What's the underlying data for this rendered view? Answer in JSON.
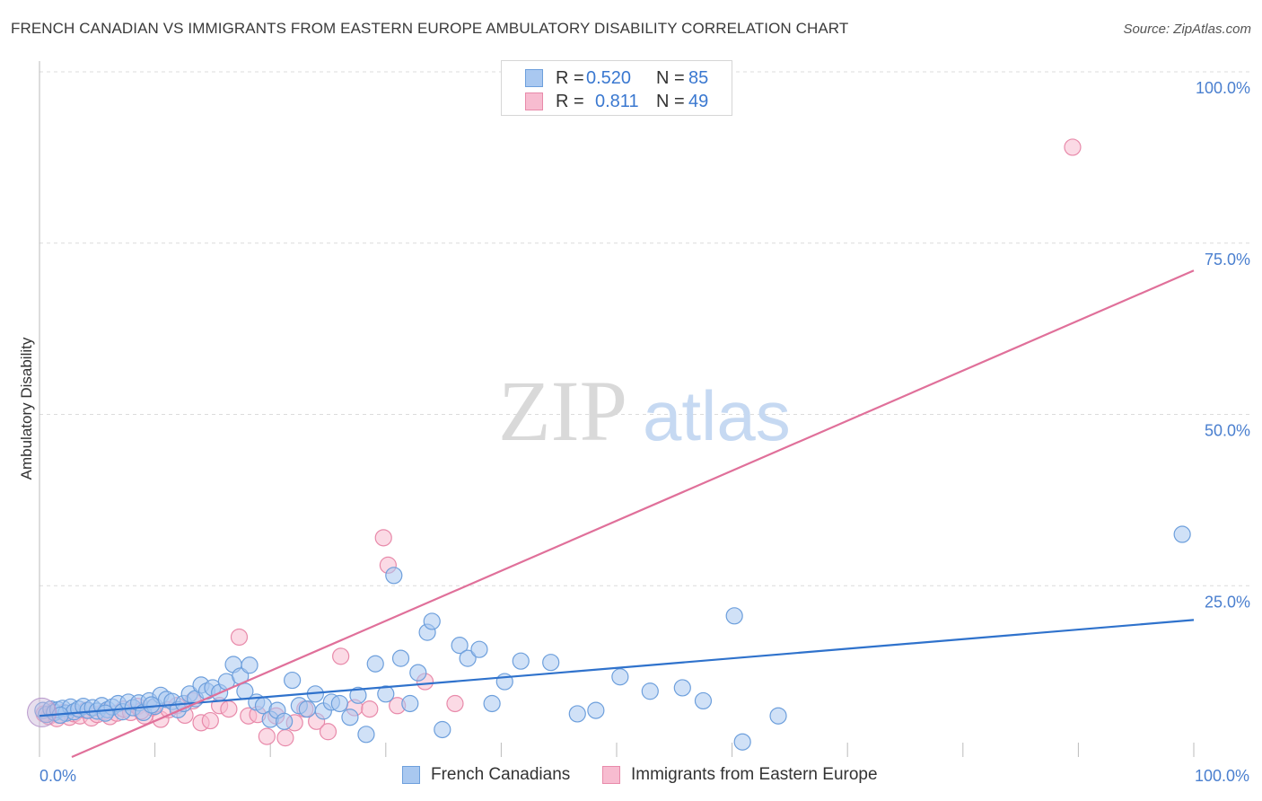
{
  "title": "FRENCH CANADIAN VS IMMIGRANTS FROM EASTERN EUROPE AMBULATORY DISABILITY CORRELATION CHART",
  "source": "Source: ZipAtlas.com",
  "watermark": {
    "zip": "ZIP",
    "atlas": "atlas"
  },
  "colors": {
    "blue_fill": "#a9c8f0",
    "blue_stroke": "#6d9fdc",
    "blue_line": "#2f72cc",
    "pink_fill": "#f7bcd0",
    "pink_stroke": "#e88aaa",
    "pink_line": "#e0709a",
    "tick_text": "#4a7fcf",
    "grid": "#dcdcdc"
  },
  "legend_top": {
    "rows": [
      {
        "r_label": "R = ",
        "r_value": "0.520",
        "n_label": "N = ",
        "n_value": "85"
      },
      {
        "r_label": "R = ",
        "r_value": "0.811",
        "n_label": "N = ",
        "n_value": "49"
      }
    ]
  },
  "legend_bottom": [
    "French Canadians",
    "Immigrants from Eastern Europe"
  ],
  "chart_data": {
    "type": "scatter",
    "title": "FRENCH CANADIAN VS IMMIGRANTS FROM EASTERN EUROPE AMBULATORY DISABILITY CORRELATION CHART",
    "xlabel": "",
    "ylabel": "Ambulatory Disability",
    "xlim": [
      0,
      100
    ],
    "ylim": [
      0,
      100
    ],
    "x_tick_labels": [
      {
        "value": 0,
        "label": "0.0%"
      },
      {
        "value": 100,
        "label": "100.0%"
      }
    ],
    "y_tick_labels": [
      {
        "value": 25,
        "label": "25.0%"
      },
      {
        "value": 50,
        "label": "50.0%"
      },
      {
        "value": 75,
        "label": "75.0%"
      },
      {
        "value": 100,
        "label": "100.0%"
      }
    ],
    "grid": "horizontal dashed",
    "legend_placement": "top-center",
    "series": [
      {
        "name": "French Canadians",
        "color": "#6d9fdc",
        "r": 0.52,
        "n": 85,
        "trend": [
          [
            0,
            6.0
          ],
          [
            100,
            20.0
          ]
        ],
        "points": [
          [
            0.3,
            6.8
          ],
          [
            0.6,
            6.2
          ],
          [
            1.0,
            7.0
          ],
          [
            1.3,
            6.5
          ],
          [
            1.6,
            6.9
          ],
          [
            2.0,
            7.1
          ],
          [
            2.3,
            6.4
          ],
          [
            2.7,
            7.3
          ],
          [
            3.0,
            6.6
          ],
          [
            3.4,
            7.0
          ],
          [
            3.8,
            7.4
          ],
          [
            4.2,
            6.8
          ],
          [
            4.6,
            7.2
          ],
          [
            5.0,
            6.7
          ],
          [
            5.4,
            7.5
          ],
          [
            5.9,
            6.9
          ],
          [
            6.3,
            7.3
          ],
          [
            6.8,
            7.8
          ],
          [
            7.2,
            6.6
          ],
          [
            7.7,
            8.0
          ],
          [
            8.1,
            7.2
          ],
          [
            8.6,
            7.9
          ],
          [
            9.0,
            6.5
          ],
          [
            9.5,
            8.2
          ],
          [
            10.0,
            7.4
          ],
          [
            10.5,
            9.0
          ],
          [
            11.0,
            8.4
          ],
          [
            11.5,
            8.1
          ],
          [
            12.0,
            6.9
          ],
          [
            12.5,
            7.8
          ],
          [
            13.0,
            9.2
          ],
          [
            13.5,
            8.5
          ],
          [
            14.0,
            10.5
          ],
          [
            14.5,
            9.6
          ],
          [
            15.0,
            10.1
          ],
          [
            15.6,
            9.4
          ],
          [
            16.2,
            11.0
          ],
          [
            16.8,
            13.5
          ],
          [
            17.4,
            11.8
          ],
          [
            18.2,
            13.4
          ],
          [
            18.8,
            8.0
          ],
          [
            19.4,
            7.5
          ],
          [
            20.0,
            5.5
          ],
          [
            20.6,
            6.8
          ],
          [
            21.2,
            5.2
          ],
          [
            21.9,
            11.2
          ],
          [
            22.5,
            7.5
          ],
          [
            23.2,
            7.0
          ],
          [
            23.9,
            9.2
          ],
          [
            24.6,
            6.7
          ],
          [
            25.3,
            8.0
          ],
          [
            26.0,
            7.8
          ],
          [
            26.9,
            5.8
          ],
          [
            27.6,
            9.0
          ],
          [
            28.3,
            3.3
          ],
          [
            29.1,
            13.6
          ],
          [
            30.0,
            9.2
          ],
          [
            30.7,
            26.5
          ],
          [
            31.3,
            14.4
          ],
          [
            32.1,
            7.8
          ],
          [
            32.8,
            12.3
          ],
          [
            33.6,
            18.2
          ],
          [
            34.0,
            19.8
          ],
          [
            34.9,
            4.0
          ],
          [
            36.4,
            16.3
          ],
          [
            37.1,
            14.4
          ],
          [
            38.1,
            15.7
          ],
          [
            39.2,
            7.8
          ],
          [
            40.3,
            11.0
          ],
          [
            41.7,
            14.0
          ],
          [
            44.3,
            13.8
          ],
          [
            46.6,
            6.3
          ],
          [
            48.2,
            6.8
          ],
          [
            50.3,
            11.7
          ],
          [
            52.9,
            9.6
          ],
          [
            55.7,
            10.1
          ],
          [
            57.5,
            8.2
          ],
          [
            60.2,
            20.6
          ],
          [
            60.9,
            2.2
          ],
          [
            64.0,
            6.0
          ],
          [
            99.0,
            32.5
          ],
          [
            1.8,
            6.1
          ],
          [
            5.7,
            6.4
          ],
          [
            9.7,
            7.6
          ],
          [
            17.8,
            9.6
          ]
        ]
      },
      {
        "name": "Immigrants from Eastern Europe",
        "color": "#e88aaa",
        "r": 0.811,
        "n": 49,
        "trend": [
          [
            2.8,
            0.0
          ],
          [
            100,
            71.0
          ]
        ],
        "points": [
          [
            0.4,
            6.3
          ],
          [
            0.8,
            5.9
          ],
          [
            1.2,
            6.7
          ],
          [
            1.7,
            6.1
          ],
          [
            2.1,
            6.5
          ],
          [
            2.6,
            5.8
          ],
          [
            3.0,
            6.3
          ],
          [
            3.5,
            6.0
          ],
          [
            4.0,
            6.8
          ],
          [
            4.5,
            5.7
          ],
          [
            5.0,
            6.2
          ],
          [
            5.6,
            6.6
          ],
          [
            6.1,
            5.9
          ],
          [
            6.7,
            6.4
          ],
          [
            7.3,
            7.0
          ],
          [
            7.9,
            6.5
          ],
          [
            8.5,
            7.4
          ],
          [
            9.1,
            6.0
          ],
          [
            9.8,
            7.2
          ],
          [
            10.5,
            5.5
          ],
          [
            11.2,
            6.9
          ],
          [
            11.9,
            7.5
          ],
          [
            12.6,
            6.1
          ],
          [
            13.3,
            8.2
          ],
          [
            14.0,
            5.0
          ],
          [
            14.8,
            5.3
          ],
          [
            15.6,
            7.5
          ],
          [
            16.4,
            7.0
          ],
          [
            17.3,
            17.5
          ],
          [
            18.1,
            6.0
          ],
          [
            18.9,
            6.2
          ],
          [
            19.7,
            3.0
          ],
          [
            20.5,
            6.0
          ],
          [
            21.3,
            2.8
          ],
          [
            22.1,
            5.0
          ],
          [
            23.0,
            7.0
          ],
          [
            24.0,
            5.2
          ],
          [
            25.0,
            3.7
          ],
          [
            26.1,
            14.7
          ],
          [
            27.3,
            7.2
          ],
          [
            28.6,
            7.0
          ],
          [
            29.8,
            32.0
          ],
          [
            30.2,
            28.0
          ],
          [
            31.0,
            7.5
          ],
          [
            33.4,
            11.0
          ],
          [
            36.0,
            7.8
          ],
          [
            89.5,
            89.0
          ],
          [
            1.5,
            5.6
          ],
          [
            8.8,
            6.7
          ]
        ]
      }
    ]
  },
  "bubble_note": ""
}
